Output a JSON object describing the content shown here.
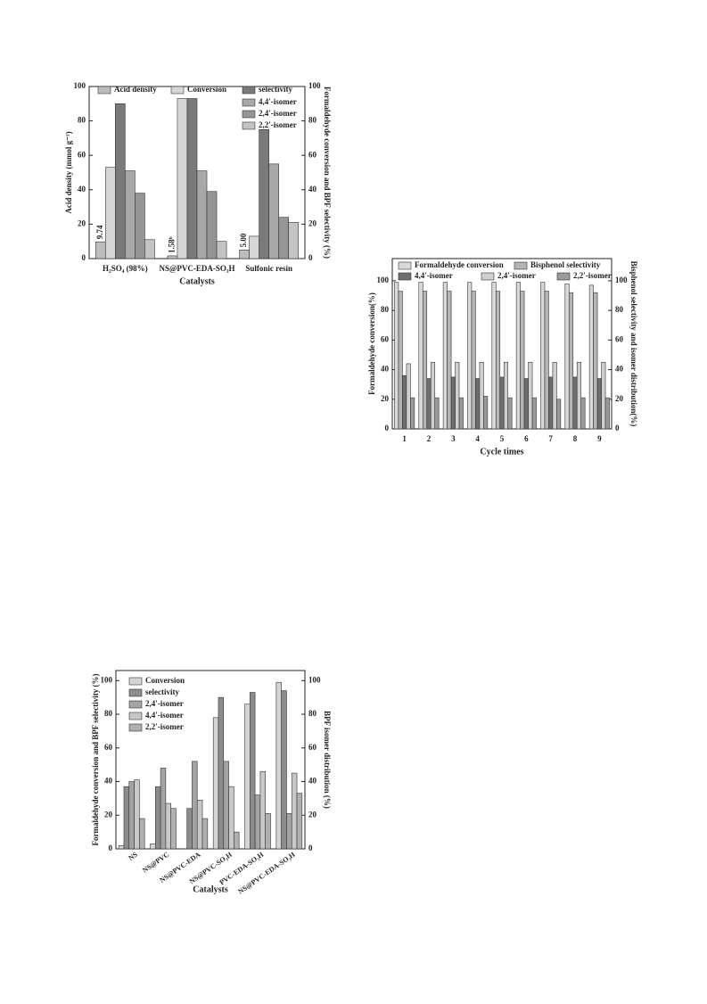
{
  "chart_data": [
    {
      "type": "bar",
      "ylabel": "Acid density (mmol g⁻¹)",
      "y2label": "Formaldehyde conversion and BPF selectivity (%)",
      "xlabel": "Catalysts",
      "categories": [
        "H₂SO₄ (98%)",
        "NS@PVC-EDA-SO₃H",
        "Sulfonic resin"
      ],
      "ylim": [
        0,
        100
      ],
      "yticks": [
        0,
        20,
        40,
        60,
        80,
        100
      ],
      "y2lim": [
        0,
        100
      ],
      "y2ticks": [
        0,
        20,
        40,
        60,
        80,
        100
      ],
      "series": [
        {
          "name": "Acid density",
          "color": "#bdbdbd",
          "values": [
            9.74,
            1.58,
            5.0
          ],
          "value_labels": [
            "9.74",
            "1.58ᵇ",
            "5.00"
          ]
        },
        {
          "name": "Conversion",
          "color": "#d6d6d6",
          "values": [
            53,
            93,
            13
          ],
          "axis": "y2"
        },
        {
          "name": "selectivity",
          "color": "#7a7a7a",
          "values": [
            90,
            93,
            75
          ],
          "axis": "y2"
        },
        {
          "name": "4,4′-isomer",
          "color": "#a8a8a8",
          "values": [
            51,
            51,
            55
          ],
          "axis": "y2"
        },
        {
          "name": "2,4′-isomer",
          "color": "#959595",
          "values": [
            38,
            39,
            24
          ],
          "axis": "y2"
        },
        {
          "name": "2,2′-isomer",
          "color": "#c4c4c4",
          "values": [
            11,
            10,
            21
          ],
          "axis": "y2"
        }
      ]
    },
    {
      "type": "bar",
      "ylabel": "Formaldehyde conversion(%)",
      "y2label": "Bisphenol selectivity and isomer distribution(%)",
      "xlabel": "Cycle times",
      "categories": [
        "1",
        "2",
        "3",
        "4",
        "5",
        "6",
        "7",
        "8",
        "9"
      ],
      "ylim": [
        0,
        115
      ],
      "yticks": [
        0,
        20,
        40,
        60,
        80,
        100
      ],
      "y2lim": [
        0,
        115
      ],
      "y2ticks": [
        0,
        20,
        40,
        60,
        80,
        100
      ],
      "series": [
        {
          "name": "Formaldehyde conversion",
          "color": "#d9d9d9",
          "values": [
            99,
            99,
            99,
            99,
            99,
            99,
            99,
            98,
            97
          ]
        },
        {
          "name": "Bisphenol selectivity",
          "color": "#b5b5b5",
          "values": [
            93,
            93,
            93,
            93,
            93,
            93,
            93,
            92,
            92
          ],
          "axis": "y2"
        },
        {
          "name": "4,4′-isomer",
          "color": "#6e6e6e",
          "values": [
            36,
            34,
            35,
            34,
            35,
            34,
            35,
            35,
            34
          ],
          "axis": "y2"
        },
        {
          "name": "2,4′-isomer",
          "color": "#cfcfcf",
          "values": [
            44,
            45,
            45,
            45,
            45,
            45,
            45,
            45,
            45
          ],
          "axis": "y2"
        },
        {
          "name": "2,2′-isomer",
          "color": "#9a9a9a",
          "values": [
            21,
            21,
            21,
            22,
            21,
            21,
            20,
            21,
            21
          ],
          "axis": "y2"
        }
      ]
    },
    {
      "type": "bar",
      "ylabel": "Formaldehyde conversion and BPF selectivity (%)",
      "y2label": "BPF isomer distribution (%)",
      "xlabel": "Catalysts",
      "categories": [
        "NS",
        "NS@PVC",
        "NS@PVC-EDA",
        "NS@PVC-SO₃H",
        "PVC-EDA-SO₃H",
        "NS@PVC-EDA-SO₃H"
      ],
      "ylim": [
        0,
        106
      ],
      "yticks": [
        0,
        20,
        40,
        60,
        80,
        100
      ],
      "y2lim": [
        0,
        106
      ],
      "y2ticks": [
        0,
        20,
        40,
        60,
        80,
        100
      ],
      "series": [
        {
          "name": "Conversion",
          "color": "#d4d4d4",
          "values": [
            2,
            3,
            0,
            78,
            86,
            99
          ]
        },
        {
          "name": "selectivity",
          "color": "#8c8c8c",
          "values": [
            37,
            37,
            24,
            90,
            93,
            94
          ]
        },
        {
          "name": "2,4′-isomer",
          "color": "#a3a3a3",
          "values": [
            40,
            48,
            52,
            52,
            32,
            21
          ],
          "axis": "y2"
        },
        {
          "name": "4,4′-isomer",
          "color": "#c8c8c8",
          "values": [
            41,
            27,
            29,
            37,
            46,
            45
          ],
          "axis": "y2"
        },
        {
          "name": "2,2′-isomer",
          "color": "#b0b0b0",
          "values": [
            18,
            24,
            18,
            10,
            21,
            33
          ],
          "axis": "y2"
        }
      ]
    }
  ]
}
